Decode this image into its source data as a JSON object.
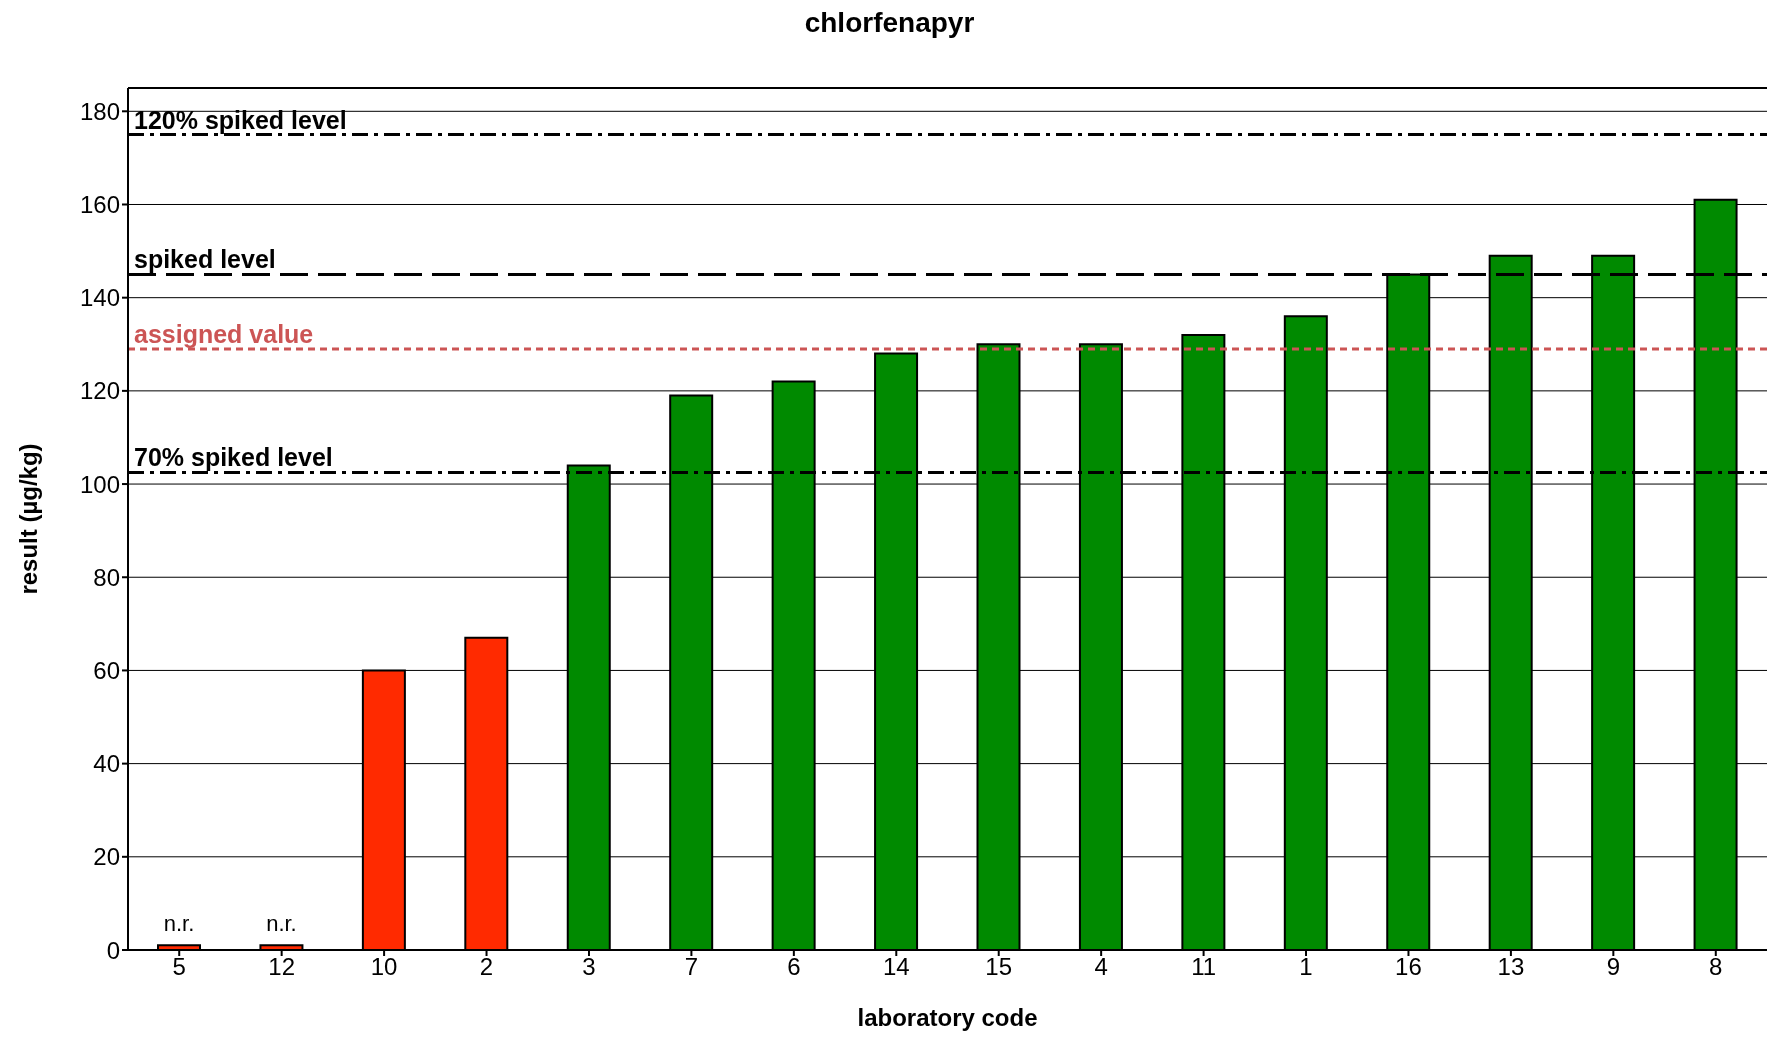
{
  "chart_data": {
    "type": "bar",
    "title": "chlorfenapyr",
    "xlabel": "laboratory code",
    "ylabel": "result (µg/kg)",
    "categories": [
      "5",
      "12",
      "10",
      "2",
      "3",
      "7",
      "6",
      "14",
      "15",
      "4",
      "11",
      "1",
      "16",
      "13",
      "9",
      "8"
    ],
    "values": [
      1,
      1,
      60,
      67,
      104,
      119,
      122,
      128,
      130,
      130,
      132,
      136,
      145,
      149,
      149,
      161
    ],
    "value_labels": [
      "n.r.",
      "n.r.",
      null,
      null,
      null,
      null,
      null,
      null,
      null,
      null,
      null,
      null,
      null,
      null,
      null,
      null
    ],
    "colors": [
      "#ff2a00",
      "#ff2a00",
      "#ff2a00",
      "#ff2a00",
      "#008a00",
      "#008a00",
      "#008a00",
      "#008a00",
      "#008a00",
      "#008a00",
      "#008a00",
      "#008a00",
      "#008a00",
      "#008a00",
      "#008a00",
      "#008a00"
    ],
    "ylim": [
      0,
      185
    ],
    "yticks": [
      0,
      20,
      40,
      60,
      80,
      100,
      120,
      140,
      160,
      180
    ],
    "grid": "y",
    "ref_lines": [
      {
        "axis": "y",
        "value": 175,
        "label": "120% spiked level",
        "color": "#000000",
        "line_style": "dashdot"
      },
      {
        "axis": "y",
        "value": 145,
        "label": "spiked level",
        "color": "#000000",
        "line_style": "dashed"
      },
      {
        "axis": "y",
        "value": 129,
        "label": "assigned value",
        "color": "#cc5555",
        "line_style": "dotted"
      },
      {
        "axis": "y",
        "value": 102.5,
        "label": "70%  spiked level",
        "color": "#000000",
        "line_style": "dashdot"
      }
    ]
  }
}
